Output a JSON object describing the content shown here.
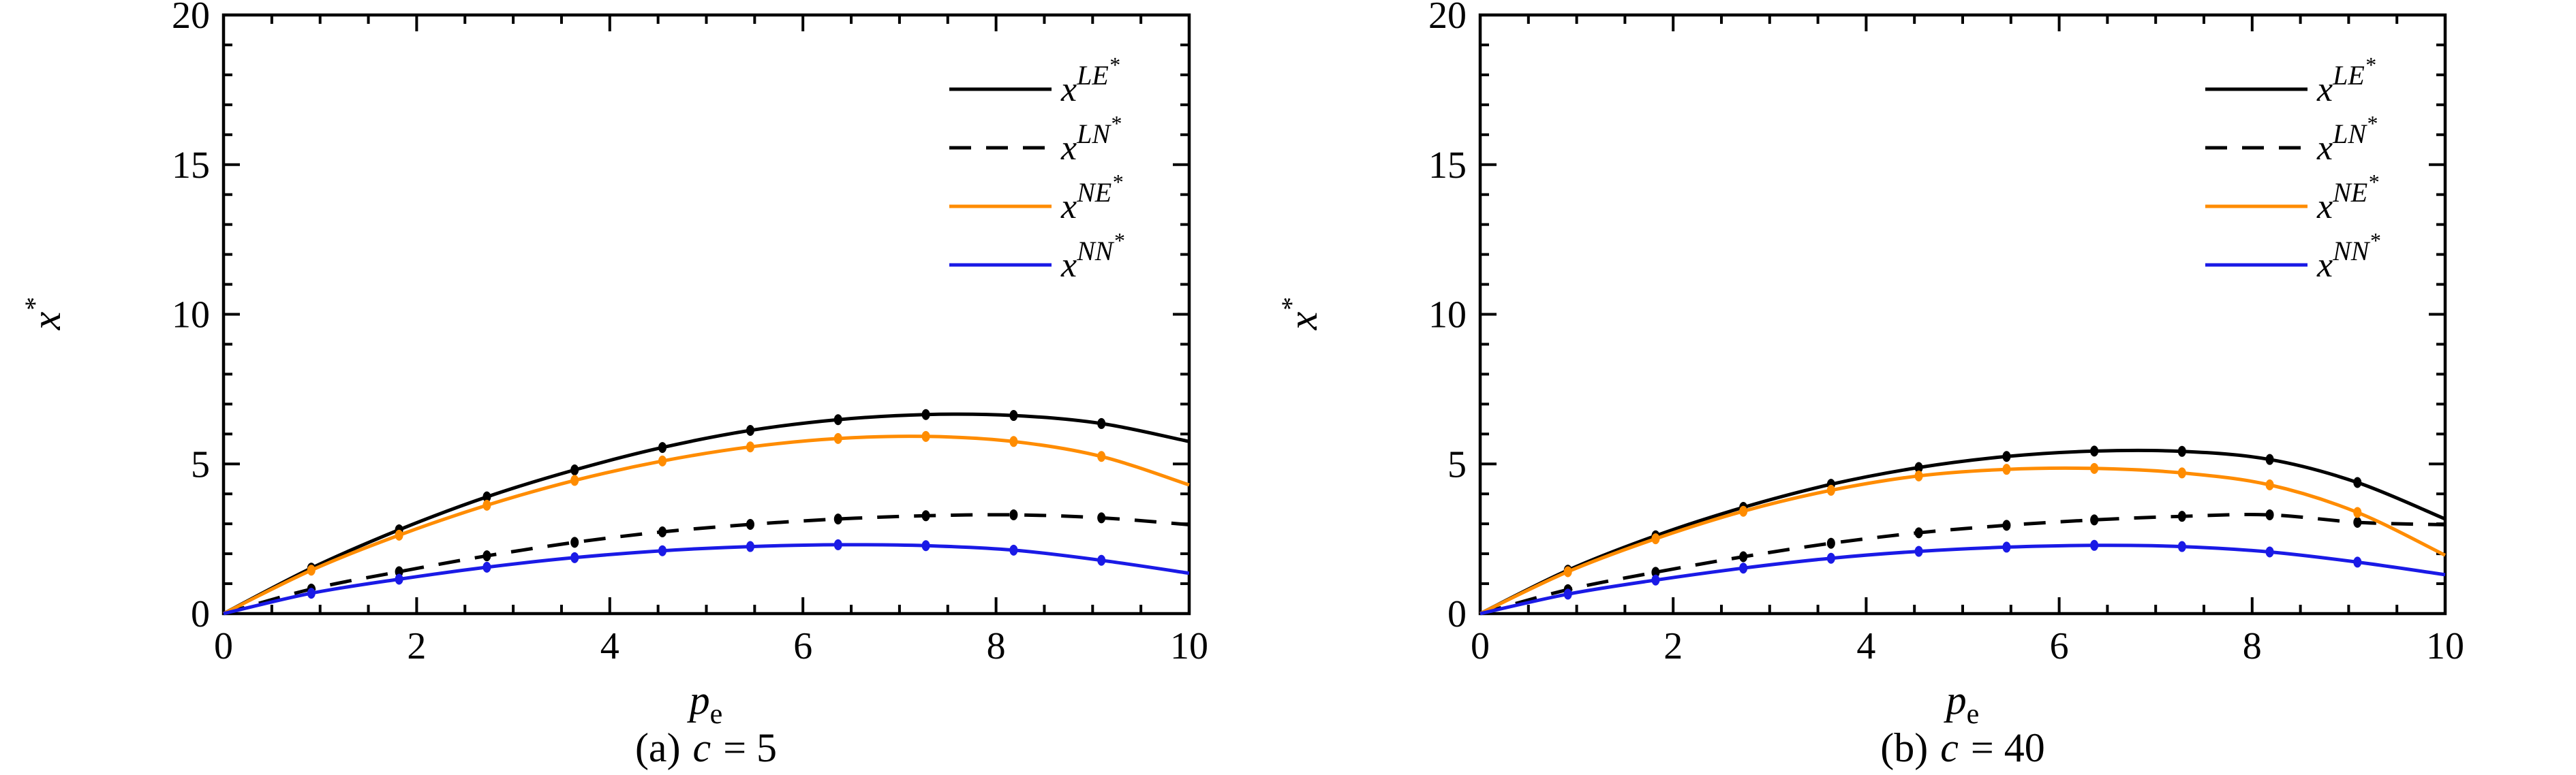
{
  "page": {
    "background": "#ffffff",
    "axis_color": "#000000"
  },
  "chart_data": [
    {
      "type": "line",
      "panel": "a",
      "caption": {
        "index": "(a)",
        "variable": "c",
        "equation": "= 5"
      },
      "xlabel": {
        "base": "p",
        "sub": "e"
      },
      "ylabel": {
        "base": "x",
        "sup": "*"
      },
      "xlim": [
        0,
        10
      ],
      "ylim": [
        0,
        20
      ],
      "xticks": [
        0,
        2,
        4,
        6,
        8,
        10
      ],
      "yticks": [
        0,
        5,
        10,
        15,
        20
      ],
      "x_minor_step": 0.5,
      "y_minor_step": 1,
      "grid": false,
      "legend_position": "top-right",
      "x": [
        0,
        0.909,
        1.818,
        2.727,
        3.636,
        4.545,
        5.455,
        6.364,
        7.273,
        8.182,
        9.091,
        10
      ],
      "series": [
        {
          "name": {
            "base": "x",
            "sup": "LE",
            "star": "*"
          },
          "color": "#000000",
          "dash": "solid",
          "marker": "circle",
          "values": [
            0,
            1.52,
            2.8,
            3.9,
            4.8,
            5.55,
            6.12,
            6.48,
            6.65,
            6.62,
            6.35,
            5.75
          ]
        },
        {
          "name": {
            "base": "x",
            "sup": "LN",
            "star": "*"
          },
          "color": "#000000",
          "dash": "dashed",
          "marker": "circle",
          "values": [
            0,
            0.82,
            1.4,
            1.93,
            2.38,
            2.73,
            2.98,
            3.16,
            3.27,
            3.3,
            3.2,
            2.97
          ]
        },
        {
          "name": {
            "base": "x",
            "sup": "NE",
            "star": "*"
          },
          "color": "#FF8C00",
          "dash": "solid",
          "marker": "circle",
          "values": [
            0,
            1.45,
            2.62,
            3.62,
            4.45,
            5.1,
            5.57,
            5.85,
            5.92,
            5.75,
            5.25,
            4.3
          ]
        },
        {
          "name": {
            "base": "x",
            "sup": "NN",
            "star": "*"
          },
          "color": "#1A1AE6",
          "dash": "solid",
          "marker": "circle",
          "values": [
            0,
            0.68,
            1.15,
            1.55,
            1.87,
            2.1,
            2.24,
            2.3,
            2.27,
            2.12,
            1.78,
            1.35
          ]
        }
      ]
    },
    {
      "type": "line",
      "panel": "b",
      "caption": {
        "index": "(b)",
        "variable": "c",
        "equation": "= 40"
      },
      "xlabel": {
        "base": "p",
        "sub": "e"
      },
      "ylabel": {
        "base": "x",
        "sup": "*"
      },
      "xlim": [
        0,
        10
      ],
      "ylim": [
        0,
        20
      ],
      "xticks": [
        0,
        2,
        4,
        6,
        8,
        10
      ],
      "yticks": [
        0,
        5,
        10,
        15,
        20
      ],
      "x_minor_step": 0.5,
      "y_minor_step": 1,
      "grid": false,
      "legend_position": "top-right",
      "x": [
        0,
        0.909,
        1.818,
        2.727,
        3.636,
        4.545,
        5.455,
        6.364,
        7.273,
        8.182,
        9.091,
        10
      ],
      "series": [
        {
          "name": {
            "base": "x",
            "sup": "LE",
            "star": "*"
          },
          "color": "#000000",
          "dash": "solid",
          "marker": "circle",
          "values": [
            0,
            1.45,
            2.6,
            3.55,
            4.32,
            4.88,
            5.25,
            5.43,
            5.42,
            5.15,
            4.38,
            3.16
          ]
        },
        {
          "name": {
            "base": "x",
            "sup": "LN",
            "star": "*"
          },
          "color": "#000000",
          "dash": "dashed",
          "marker": "circle",
          "values": [
            0,
            0.8,
            1.38,
            1.9,
            2.35,
            2.7,
            2.95,
            3.13,
            3.25,
            3.3,
            3.05,
            2.97
          ]
        },
        {
          "name": {
            "base": "x",
            "sup": "NE",
            "star": "*"
          },
          "color": "#FF8C00",
          "dash": "solid",
          "marker": "circle",
          "values": [
            0,
            1.4,
            2.5,
            3.42,
            4.12,
            4.6,
            4.82,
            4.85,
            4.7,
            4.3,
            3.38,
            1.95
          ]
        },
        {
          "name": {
            "base": "x",
            "sup": "NN",
            "star": "*"
          },
          "color": "#1A1AE6",
          "dash": "solid",
          "marker": "circle",
          "values": [
            0,
            0.65,
            1.12,
            1.52,
            1.85,
            2.08,
            2.22,
            2.28,
            2.24,
            2.06,
            1.72,
            1.3
          ]
        }
      ]
    }
  ]
}
